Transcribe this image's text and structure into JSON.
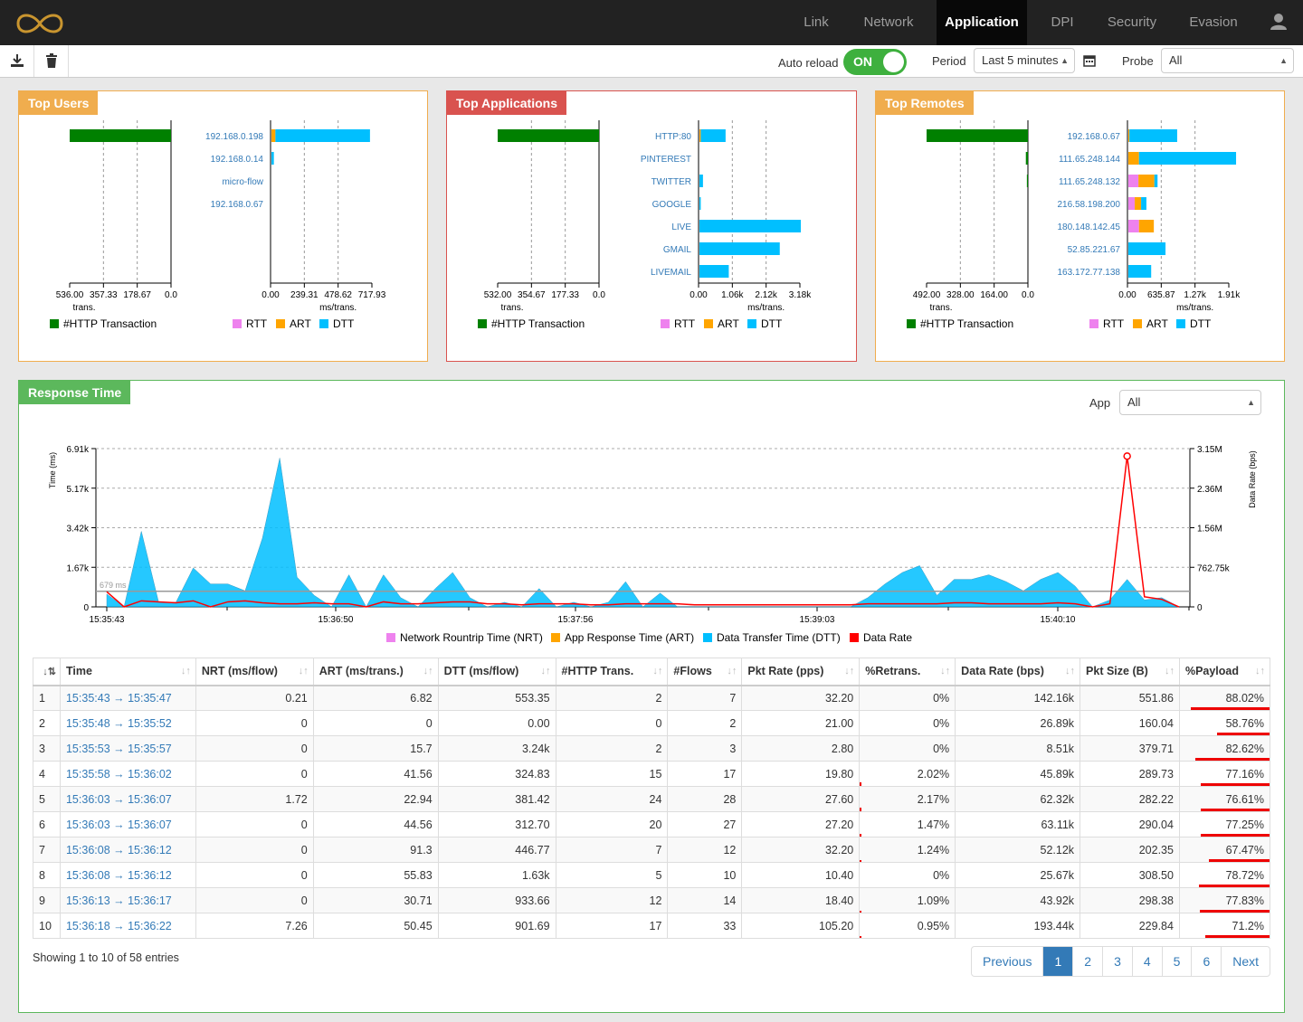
{
  "nav": {
    "items": [
      "Link",
      "Network",
      "Application",
      "DPI",
      "Security",
      "Evasion"
    ],
    "active": "Application"
  },
  "toolbar": {
    "auto_reload_label": "Auto reload",
    "toggle_label": "ON",
    "period_label": "Period",
    "period_value": "Last 5 minutes",
    "probe_label": "Probe",
    "probe_value": "All"
  },
  "colors": {
    "rtt": "#ee82ee",
    "art": "#ffa500",
    "dtt": "#00bfff",
    "trans": "#008000",
    "rate": "#ff0000"
  },
  "panels": [
    {
      "title": "Top Users",
      "color": "#f0ad4e",
      "labels": [
        "192.168.0.198",
        "192.168.0.14",
        "micro-flow",
        "192.168.0.67"
      ],
      "trans": [
        536,
        0,
        0,
        0
      ],
      "trans_ticks": [
        "536.00",
        "357.33",
        "178.67",
        "0.0"
      ],
      "time_ticks": [
        "0.00",
        "239.31",
        "478.62",
        "717.93"
      ],
      "time_max": 717.93,
      "rtt": [
        0,
        0,
        0,
        0
      ],
      "art": [
        28,
        0,
        0,
        0
      ],
      "dtt": [
        670,
        17,
        0,
        0
      ]
    },
    {
      "title": "Top Applications",
      "color": "#d9534f",
      "labels": [
        "HTTP:80",
        "PINTEREST",
        "TWITTER",
        "GOOGLE",
        "LIVE",
        "GMAIL",
        "LIVEMAIL"
      ],
      "trans": [
        532,
        0,
        0,
        0,
        0,
        0,
        0
      ],
      "trans_ticks": [
        "532.00",
        "354.67",
        "177.33",
        "0.0"
      ],
      "time_ticks": [
        "0.00",
        "1.06k",
        "2.12k",
        "3.18k"
      ],
      "time_max": 3180,
      "rtt": [
        0,
        0,
        0,
        0,
        0,
        0,
        0
      ],
      "art": [
        40,
        0,
        0,
        0,
        0,
        0,
        0
      ],
      "dtt": [
        780,
        0,
        110,
        40,
        3180,
        2520,
        920
      ]
    },
    {
      "title": "Top Remotes",
      "color": "#f0ad4e",
      "labels": [
        "192.168.0.67",
        "111.65.248.144",
        "111.65.248.132",
        "216.58.198.200",
        "180.148.142.45",
        "52.85.221.67",
        "163.172.77.138"
      ],
      "trans": [
        492,
        10,
        5,
        0,
        0,
        0,
        0
      ],
      "trans_ticks": [
        "492.00",
        "328.00",
        "164.00",
        "0.0"
      ],
      "time_ticks": [
        "0.00",
        "635.87",
        "1.27k",
        "1.91k"
      ],
      "time_max": 1910,
      "rtt": [
        0,
        0,
        190,
        120,
        200,
        0,
        0
      ],
      "art": [
        20,
        200,
        300,
        120,
        280,
        0,
        0
      ],
      "dtt": [
        900,
        1830,
        60,
        100,
        0,
        700,
        430
      ]
    }
  ],
  "legend_left": "#HTTP Transaction",
  "legend_right": [
    "RTT",
    "ART",
    "DTT"
  ],
  "unit_trans": "trans.",
  "unit_time": "ms/trans.",
  "response": {
    "title": "Response Time",
    "app_label": "App",
    "app_value": "All",
    "chart_data": {
      "type": "area",
      "y_left_label": "Time (ms)",
      "y_right_label": "Data Rate (bps)",
      "y_left_ticks": [
        "6.91k",
        "5.17k",
        "3.42k",
        "1.67k",
        "0"
      ],
      "y_left_max": 6910,
      "y_right_ticks": [
        "3.15M",
        "2.36M",
        "1.56M",
        "762.75k",
        "0"
      ],
      "y_right_max": 3150000,
      "x_ticks": [
        "15:35:43",
        "15:36:50",
        "15:37:56",
        "15:39:03",
        "15:40:10"
      ],
      "threshold_label": "679 ms",
      "threshold": 679,
      "dtt": [
        560,
        0,
        3300,
        200,
        200,
        1700,
        1000,
        1000,
        700,
        3000,
        6500,
        1300,
        500,
        0,
        1400,
        0,
        1400,
        400,
        0,
        800,
        1500,
        400,
        0,
        200,
        0,
        800,
        0,
        200,
        0,
        200,
        1100,
        0,
        600,
        0,
        0,
        0,
        0,
        0,
        0,
        0,
        0,
        0,
        0,
        0,
        400,
        1000,
        1500,
        1800,
        500,
        1200,
        1200,
        1400,
        1100,
        700,
        1200,
        1500,
        900,
        0,
        300,
        1200,
        300,
        400,
        0
      ],
      "rate": [
        300000,
        0,
        120000,
        100000,
        80000,
        120000,
        0,
        100000,
        120000,
        80000,
        60000,
        60000,
        80000,
        60000,
        60000,
        0,
        100000,
        60000,
        60000,
        80000,
        100000,
        100000,
        60000,
        60000,
        40000,
        60000,
        60000,
        60000,
        40000,
        40000,
        60000,
        60000,
        60000,
        60000,
        40000,
        40000,
        40000,
        40000,
        40000,
        40000,
        40000,
        40000,
        40000,
        40000,
        60000,
        60000,
        60000,
        60000,
        60000,
        80000,
        80000,
        60000,
        60000,
        60000,
        60000,
        80000,
        60000,
        0,
        60000,
        3000000,
        200000,
        150000,
        0
      ],
      "series": [
        {
          "name": "Network Rountrip Time (NRT)",
          "color": "#ee82ee"
        },
        {
          "name": "App Response Time (ART)",
          "color": "#ffa500"
        },
        {
          "name": "Data Transfer Time (DTT)",
          "color": "#00bfff"
        },
        {
          "name": "Data Rate",
          "color": "#ff0000"
        }
      ]
    }
  },
  "table": {
    "headers": [
      "",
      "Time",
      "NRT (ms/flow)",
      "ART (ms/trans.)",
      "DTT (ms/flow)",
      "#HTTP Trans.",
      "#Flows",
      "Pkt Rate (pps)",
      "%Retrans.",
      "Data Rate (bps)",
      "Pkt Size (B)",
      "%Payload"
    ],
    "rows": [
      [
        "1",
        "15:35:43 → 15:35:47",
        "0.21",
        "6.82",
        "553.35",
        "2",
        "7",
        "32.20",
        "0%",
        "142.16k",
        "551.86",
        "88.02%"
      ],
      [
        "2",
        "15:35:48 → 15:35:52",
        "0",
        "0",
        "0.00",
        "0",
        "2",
        "21.00",
        "0%",
        "26.89k",
        "160.04",
        "58.76%"
      ],
      [
        "3",
        "15:35:53 → 15:35:57",
        "0",
        "15.7",
        "3.24k",
        "2",
        "3",
        "2.80",
        "0%",
        "8.51k",
        "379.71",
        "82.62%"
      ],
      [
        "4",
        "15:35:58 → 15:36:02",
        "0",
        "41.56",
        "324.83",
        "15",
        "17",
        "19.80",
        "2.02%",
        "45.89k",
        "289.73",
        "77.16%"
      ],
      [
        "5",
        "15:36:03 → 15:36:07",
        "1.72",
        "22.94",
        "381.42",
        "24",
        "28",
        "27.60",
        "2.17%",
        "62.32k",
        "282.22",
        "76.61%"
      ],
      [
        "6",
        "15:36:03 → 15:36:07",
        "0",
        "44.56",
        "312.70",
        "20",
        "27",
        "27.20",
        "1.47%",
        "63.11k",
        "290.04",
        "77.25%"
      ],
      [
        "7",
        "15:36:08 → 15:36:12",
        "0",
        "91.3",
        "446.77",
        "7",
        "12",
        "32.20",
        "1.24%",
        "52.12k",
        "202.35",
        "67.47%"
      ],
      [
        "8",
        "15:36:08 → 15:36:12",
        "0",
        "55.83",
        "1.63k",
        "5",
        "10",
        "10.40",
        "0%",
        "25.67k",
        "308.50",
        "78.72%"
      ],
      [
        "9",
        "15:36:13 → 15:36:17",
        "0",
        "30.71",
        "933.66",
        "12",
        "14",
        "18.40",
        "1.09%",
        "43.92k",
        "298.38",
        "77.83%"
      ],
      [
        "10",
        "15:36:18 → 15:36:22",
        "7.26",
        "50.45",
        "901.69",
        "17",
        "33",
        "105.20",
        "0.95%",
        "193.44k",
        "229.84",
        "71.2%"
      ]
    ]
  },
  "footer": {
    "showing": "Showing 1 to 10 of 58 entries",
    "pages": [
      "Previous",
      "1",
      "2",
      "3",
      "4",
      "5",
      "6",
      "Next"
    ],
    "active_page": "1"
  }
}
